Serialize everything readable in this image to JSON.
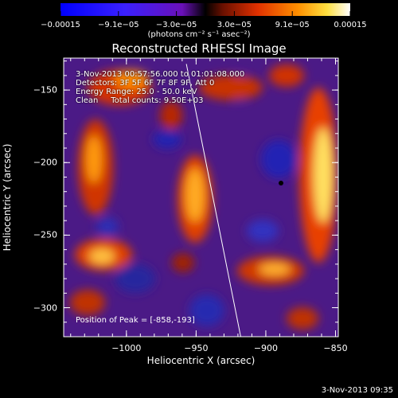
{
  "chart_data": {
    "type": "heatmap",
    "title": "Reconstructed RHESSI Image",
    "xlabel": "Heliocentric X (arcsec)",
    "ylabel": "Heliocentric Y (arcsec)",
    "xlim": [
      -1045,
      -848
    ],
    "ylim": [
      -320,
      -128
    ],
    "x_ticks": [
      -1000,
      -950,
      -900,
      -850
    ],
    "x_tick_labels": [
      "−1000",
      "−950",
      "−900",
      "−850"
    ],
    "y_ticks": [
      -150,
      -200,
      -250,
      -300
    ],
    "y_tick_labels": [
      "−150",
      "−200",
      "−250",
      "−300"
    ],
    "colorbar": {
      "range": [
        -0.00015,
        0.00015
      ],
      "tick_labels": [
        "−0.00015",
        "−9.1e−05",
        "−3.0e−05",
        "3.0e−05",
        "9.1e−05",
        "0.00015"
      ],
      "units_text": "(photons cm⁻² s⁻¹ asec⁻²)"
    },
    "limb_line": {
      "x": [
        -957,
        -918
      ],
      "y": [
        -132,
        -320
      ]
    },
    "annotations": [
      "3-Nov-2013 00:57:56.000 to 01:01:08.000",
      "Detectors: 3F 5F 6F 7F 8F 9F, Att 0",
      "Energy Range: 25.0 - 50.0 keV",
      "Clean     Total counts: 9.50E+03"
    ],
    "peak_text": "Position of Peak = [-858,-193]",
    "peak_position": [
      -858,
      -193
    ],
    "timestamp": "3-Nov-2013 09:35"
  }
}
